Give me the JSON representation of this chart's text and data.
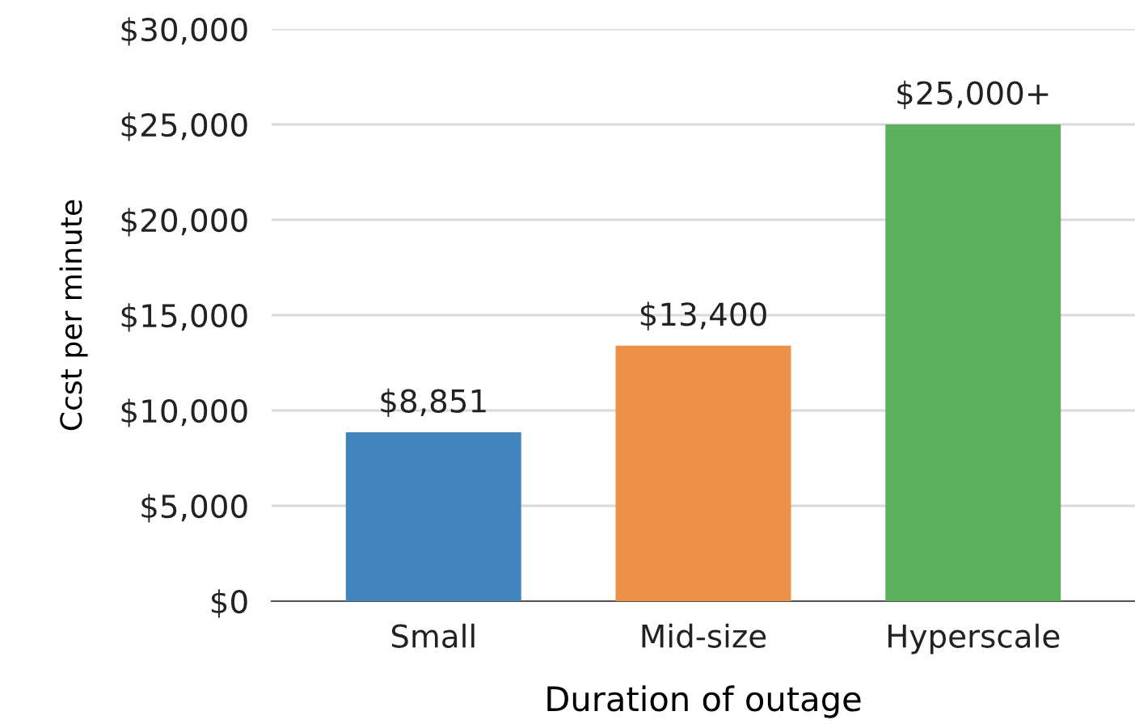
{
  "chart_data": {
    "type": "bar",
    "xlabel": "Duration of outage",
    "ylabel": "Ccst per minute",
    "categories": [
      "Small",
      "Mid-size",
      "Hyperscale"
    ],
    "values": [
      8851,
      13400,
      25000
    ],
    "colors": [
      "#4285be",
      "#ee9148",
      "#5db15e"
    ],
    "value_labels": [
      "$8,851",
      "$13,400",
      "$25,000+"
    ],
    "ylim": [
      0,
      30000
    ],
    "yticks": [
      {
        "value": 0,
        "label": "$0"
      },
      {
        "value": 5000,
        "label": "$5,000"
      },
      {
        "value": 10000,
        "label": "$10,000"
      },
      {
        "value": 15000,
        "label": "$15,000"
      },
      {
        "value": 20000,
        "label": "$20,000"
      },
      {
        "value": 25000,
        "label": "$25,000"
      },
      {
        "value": 30000,
        "label": "$30,000"
      }
    ],
    "grid": "y",
    "legend": false
  }
}
